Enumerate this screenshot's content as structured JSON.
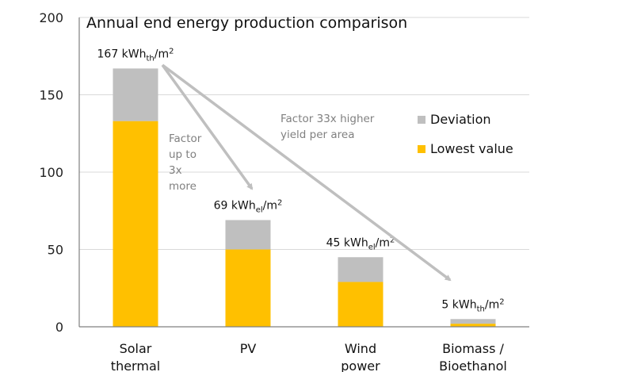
{
  "chart_data": {
    "type": "bar",
    "stacked": true,
    "title": "Annual end energy production comparison",
    "xlabel": "",
    "ylabel": "",
    "ylim": [
      0,
      200
    ],
    "yticks": [
      0,
      50,
      100,
      150,
      200
    ],
    "grid": true,
    "legend_position": "right",
    "categories": [
      [
        "Solar",
        "thermal"
      ],
      [
        "PV"
      ],
      [
        "Wind",
        "power"
      ],
      [
        "Biomass /",
        "Bioethanol"
      ]
    ],
    "series": [
      {
        "name": "Lowest value",
        "color": "#FFC000",
        "values": [
          133,
          50,
          29,
          2
        ]
      },
      {
        "name": "Deviation",
        "color": "#BFBFBF",
        "values": [
          34,
          19,
          16,
          3
        ]
      }
    ],
    "legend_order": [
      "Deviation",
      "Lowest value"
    ],
    "data_labels": [
      {
        "value": "167 kWh",
        "sub": "th",
        "unit": "/m",
        "sup": "2"
      },
      {
        "value": "69 kWh",
        "sub": "el",
        "unit": "/m",
        "sup": "2"
      },
      {
        "value": "45 kWh",
        "sub": "el",
        "unit": "/m",
        "sup": "2"
      },
      {
        "value": "5 kWh",
        "sub": "th",
        "unit": "/m",
        "sup": "2"
      }
    ],
    "annotations": [
      {
        "text": [
          "Factor",
          "up to",
          "3x",
          "more"
        ],
        "from": "Solar thermal",
        "to": "PV"
      },
      {
        "text": [
          "Factor 33x higher",
          "yield per area"
        ],
        "from": "Solar thermal",
        "to": "Biomass / Bioethanol"
      }
    ],
    "colors": {
      "axis": "#808080",
      "grid": "#D9D9D9",
      "arrow": "#BFBFBF",
      "annotation_text": "#808080"
    }
  }
}
